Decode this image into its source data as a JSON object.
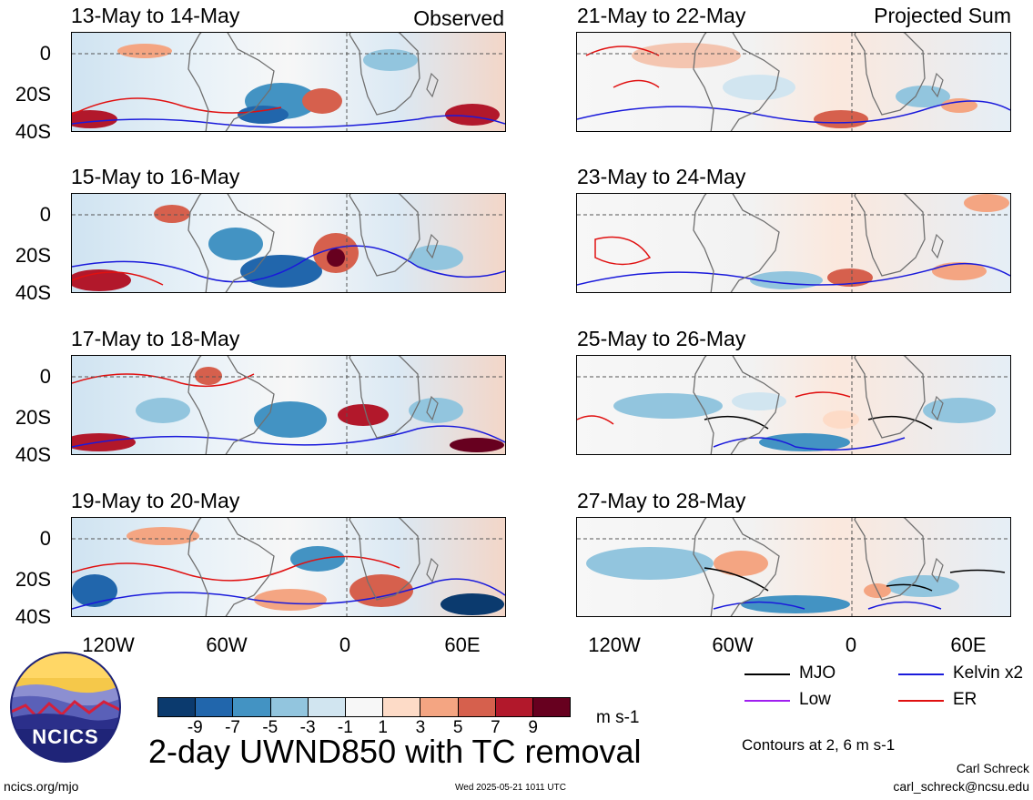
{
  "observed_label": "Observed",
  "projected_label": "Projected Sum",
  "panels_left": [
    {
      "title": "13-May to 14-May"
    },
    {
      "title": "15-May to 16-May"
    },
    {
      "title": "17-May to 18-May"
    },
    {
      "title": "19-May to 20-May"
    }
  ],
  "panels_right": [
    {
      "title": "21-May to 22-May"
    },
    {
      "title": "23-May to 24-May"
    },
    {
      "title": "25-May to 26-May"
    },
    {
      "title": "27-May to 28-May"
    }
  ],
  "y_ticks": [
    "0",
    "20S",
    "40S"
  ],
  "x_ticks": [
    "120W",
    "60W",
    "0",
    "60E"
  ],
  "colorbar": {
    "labels": [
      "-9",
      "-7",
      "-5",
      "-3",
      "-1",
      "1",
      "3",
      "5",
      "7",
      "9"
    ],
    "colors": [
      "#0b3a6e",
      "#2166ac",
      "#4393c3",
      "#92c5de",
      "#d1e5f0",
      "#f7f7f7",
      "#fddbc7",
      "#f4a582",
      "#d6604d",
      "#b2182b",
      "#67001f"
    ],
    "units": "m s-1"
  },
  "legend": {
    "mjo": {
      "label": "MJO",
      "color": "#000000"
    },
    "kelvin": {
      "label": "Kelvin x2",
      "color": "#1a1adb"
    },
    "low": {
      "label": "Low",
      "color": "#a020f0"
    },
    "er": {
      "label": "ER",
      "color": "#e01010"
    },
    "contours_note": "Contours at 2, 6 m s-1"
  },
  "main_title": "2-day UWND850 with TC removal",
  "logo_text": "NCICS",
  "footer": {
    "url": "ncics.org/mjo",
    "timestamp": "Wed 2025-05-21 1011 UTC",
    "author": "Carl Schreck",
    "email": "carl_schreck@ncsu.edu"
  }
}
